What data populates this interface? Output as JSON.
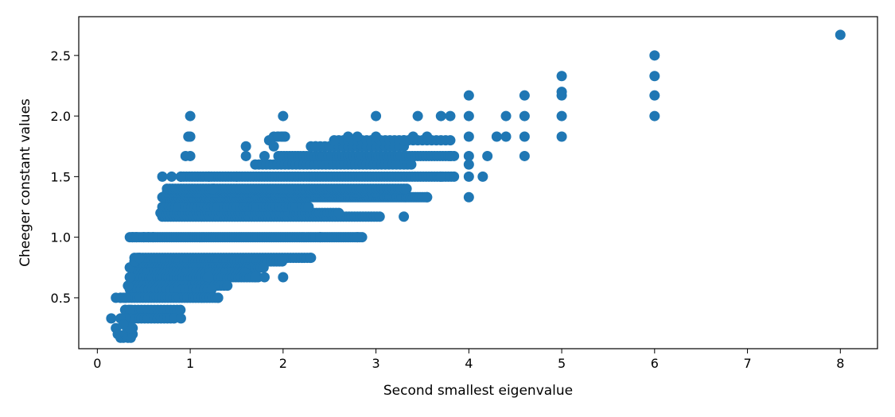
{
  "chart_data": {
    "type": "scatter",
    "title": "",
    "xlabel": "Second smallest eigenvalue",
    "ylabel": "Cheeger constant values",
    "xlim": [
      -0.2,
      8.4
    ],
    "ylim": [
      0.08,
      2.82
    ],
    "xticks": [
      0,
      1,
      2,
      3,
      4,
      5,
      6,
      7,
      8
    ],
    "yticks": [
      0.5,
      1.0,
      1.5,
      2.0,
      2.5
    ],
    "ytick_labels": [
      "0.5",
      "1.0",
      "1.5",
      "2.0",
      "2.5"
    ],
    "grid": false,
    "color": "#1f77b4",
    "series": [
      {
        "points": [
          [
            0.15,
            0.33
          ],
          [
            0.2,
            0.25
          ],
          [
            0.22,
            0.2
          ],
          [
            0.25,
            0.17
          ],
          [
            0.28,
            0.17
          ],
          [
            0.3,
            0.2
          ],
          [
            0.33,
            0.17
          ],
          [
            0.36,
            0.17
          ],
          [
            0.38,
            0.2
          ],
          [
            0.38,
            0.25
          ],
          [
            0.2,
            0.5
          ],
          [
            0.25,
            0.5
          ],
          [
            0.3,
            0.5
          ],
          [
            0.3,
            0.4
          ],
          [
            0.35,
            0.4
          ],
          [
            0.35,
            0.33
          ],
          [
            0.3,
            0.33
          ],
          [
            0.25,
            0.33
          ],
          [
            0.35,
            0.25
          ],
          [
            0.28,
            0.28
          ],
          [
            0.33,
            0.6
          ],
          [
            0.35,
            0.67
          ],
          [
            0.35,
            0.75
          ],
          [
            0.4,
            0.8
          ],
          [
            0.45,
            0.83
          ],
          [
            0.38,
            1.0
          ],
          [
            0.42,
            1.0
          ],
          [
            0.5,
            1.0
          ],
          [
            0.55,
            1.0
          ],
          [
            0.6,
            1.0
          ],
          [
            0.7,
            1.5
          ],
          [
            0.8,
            1.5
          ],
          [
            0.9,
            1.5
          ],
          [
            0.95,
            1.67
          ],
          [
            1.0,
            1.67
          ],
          [
            1.0,
            1.83
          ],
          [
            0.98,
            1.83
          ],
          [
            1.0,
            2.0
          ],
          [
            1.2,
            1.5
          ],
          [
            1.25,
            1.4
          ],
          [
            1.5,
            1.5
          ],
          [
            1.6,
            1.67
          ],
          [
            1.6,
            1.75
          ],
          [
            1.8,
            1.67
          ],
          [
            1.85,
            1.8
          ],
          [
            1.9,
            1.75
          ],
          [
            2.0,
            1.83
          ],
          [
            1.95,
            1.83
          ],
          [
            2.0,
            2.0
          ],
          [
            2.35,
            1.75
          ],
          [
            2.55,
            1.8
          ],
          [
            2.7,
            1.83
          ],
          [
            2.8,
            1.83
          ],
          [
            3.0,
            1.83
          ],
          [
            3.0,
            2.0
          ],
          [
            3.3,
            1.8
          ],
          [
            3.4,
            1.83
          ],
          [
            3.45,
            2.0
          ],
          [
            3.55,
            1.83
          ],
          [
            3.7,
            2.0
          ],
          [
            3.8,
            2.0
          ],
          [
            4.0,
            2.17
          ],
          [
            4.0,
            2.0
          ],
          [
            4.0,
            1.83
          ],
          [
            4.0,
            1.67
          ],
          [
            4.0,
            1.6
          ],
          [
            4.0,
            1.5
          ],
          [
            4.0,
            1.33
          ],
          [
            4.15,
            1.5
          ],
          [
            4.2,
            1.67
          ],
          [
            4.3,
            1.83
          ],
          [
            4.4,
            2.0
          ],
          [
            4.4,
            1.83
          ],
          [
            4.6,
            2.17
          ],
          [
            4.6,
            2.0
          ],
          [
            4.6,
            1.83
          ],
          [
            4.6,
            1.67
          ],
          [
            5.0,
            2.33
          ],
          [
            5.0,
            2.2
          ],
          [
            5.0,
            2.17
          ],
          [
            5.0,
            2.0
          ],
          [
            5.0,
            1.83
          ],
          [
            6.0,
            2.5
          ],
          [
            6.0,
            2.33
          ],
          [
            6.0,
            2.17
          ],
          [
            6.0,
            2.0
          ],
          [
            8.0,
            2.67
          ],
          [
            2.0,
            0.67
          ],
          [
            2.3,
            0.83
          ],
          [
            1.8,
            0.67
          ],
          [
            1.3,
            0.5
          ],
          [
            0.9,
            0.33
          ],
          [
            3.3,
            1.17
          ],
          [
            2.8,
            1.0
          ],
          [
            2.4,
            1.0
          ],
          [
            3.55,
            1.33
          ],
          [
            3.7,
            1.5
          ],
          [
            3.8,
            1.67
          ],
          [
            1.7,
            0.67
          ],
          [
            1.2,
            0.67
          ]
        ],
        "bands": [
          {
            "y": 1.0,
            "x_from": 0.35,
            "x_to": 2.85,
            "step": 0.025
          },
          {
            "y": 1.17,
            "x_from": 0.7,
            "x_to": 3.05,
            "step": 0.03
          },
          {
            "y": 1.2,
            "x_from": 0.68,
            "x_to": 2.6,
            "step": 0.03
          },
          {
            "y": 1.25,
            "x_from": 0.7,
            "x_to": 2.3,
            "step": 0.035
          },
          {
            "y": 1.33,
            "x_from": 0.7,
            "x_to": 3.55,
            "step": 0.025
          },
          {
            "y": 1.37,
            "x_from": 0.75,
            "x_to": 3.0,
            "step": 0.035
          },
          {
            "y": 1.4,
            "x_from": 0.75,
            "x_to": 3.35,
            "step": 0.03
          },
          {
            "y": 1.5,
            "x_from": 0.9,
            "x_to": 3.85,
            "step": 0.03
          },
          {
            "y": 1.6,
            "x_from": 1.7,
            "x_to": 3.4,
            "step": 0.04
          },
          {
            "y": 1.67,
            "x_from": 1.95,
            "x_to": 3.85,
            "step": 0.03
          },
          {
            "y": 1.75,
            "x_from": 2.3,
            "x_to": 3.3,
            "step": 0.05
          },
          {
            "y": 1.8,
            "x_from": 2.6,
            "x_to": 3.8,
            "step": 0.05
          },
          {
            "y": 0.83,
            "x_from": 0.4,
            "x_to": 2.3,
            "step": 0.03
          },
          {
            "y": 0.8,
            "x_from": 0.4,
            "x_to": 2.0,
            "step": 0.03
          },
          {
            "y": 0.75,
            "x_from": 0.35,
            "x_to": 1.8,
            "step": 0.03
          },
          {
            "y": 0.71,
            "x_from": 0.4,
            "x_to": 1.6,
            "step": 0.035
          },
          {
            "y": 0.67,
            "x_from": 0.35,
            "x_to": 1.75,
            "step": 0.03
          },
          {
            "y": 0.6,
            "x_from": 0.35,
            "x_to": 1.4,
            "step": 0.035
          },
          {
            "y": 0.57,
            "x_from": 0.35,
            "x_to": 1.25,
            "step": 0.04
          },
          {
            "y": 0.5,
            "x_from": 0.25,
            "x_to": 1.3,
            "step": 0.03
          },
          {
            "y": 0.4,
            "x_from": 0.3,
            "x_to": 0.9,
            "step": 0.035
          },
          {
            "y": 0.33,
            "x_from": 0.3,
            "x_to": 0.85,
            "step": 0.035
          },
          {
            "y": 1.83,
            "x_from": 1.9,
            "x_to": 2.05,
            "step": 0.04
          }
        ]
      }
    ]
  }
}
